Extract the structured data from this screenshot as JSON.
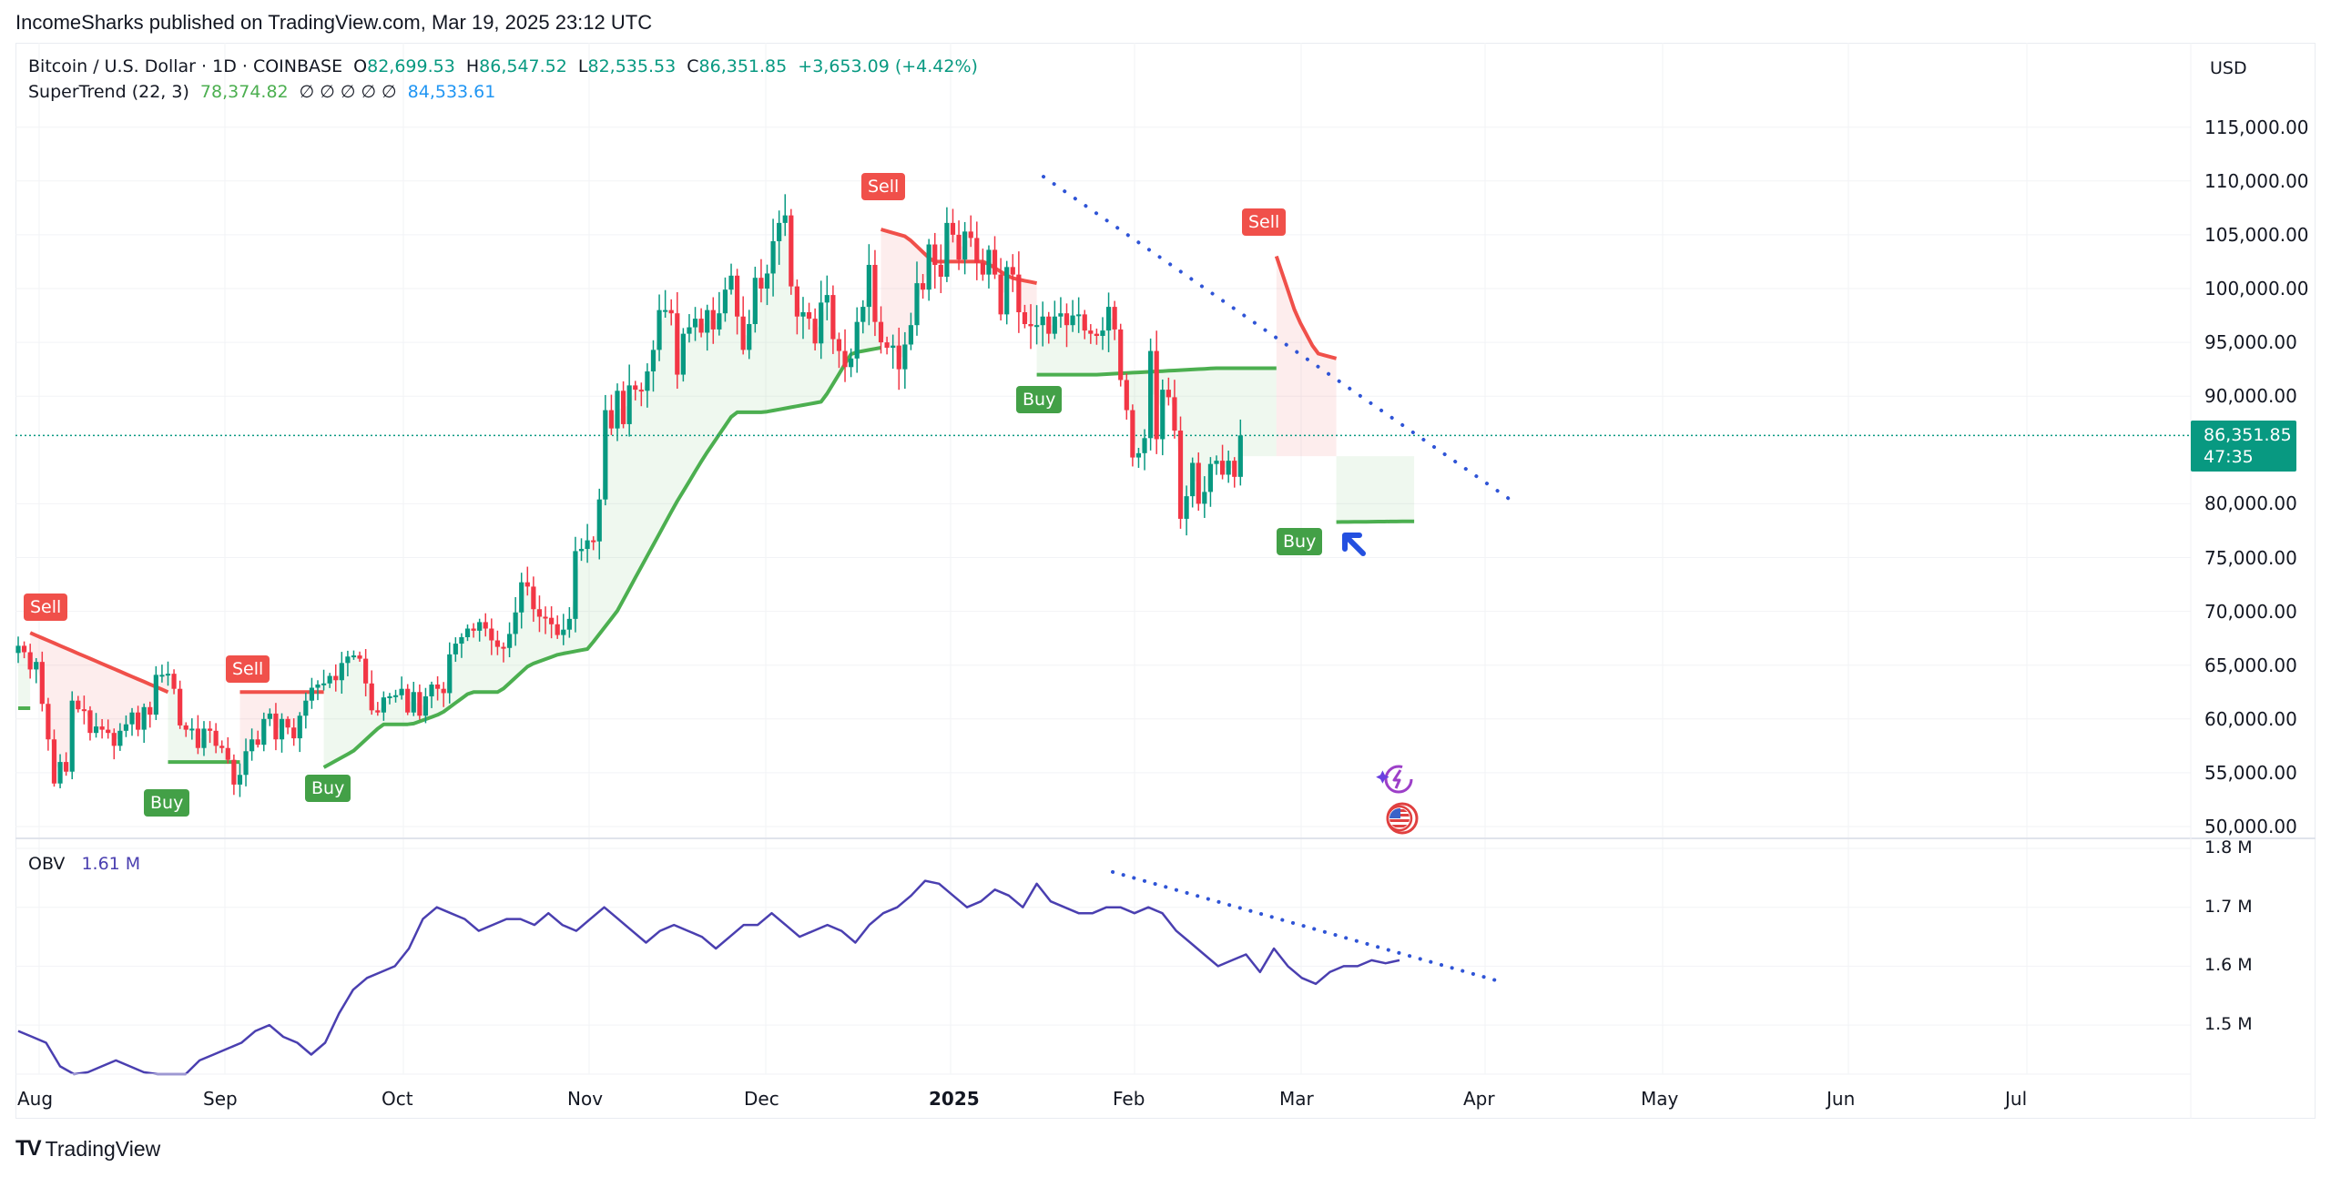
{
  "header": {
    "published": "IncomeSharks published on TradingView.com, Mar 19, 2025 23:12 UTC"
  },
  "legend": {
    "symbol": "Bitcoin / U.S. Dollar · 1D · COINBASE",
    "o_label": "O",
    "o_value": "82,699.53",
    "h_label": "H",
    "h_value": "86,547.52",
    "l_label": "L",
    "l_value": "82,535.53",
    "c_label": "C",
    "c_value": "86,351.85",
    "change": "+3,653.09 (+4.42%)",
    "supertrend_name": "SuperTrend (22, 3)",
    "supertrend_value": "78,374.82",
    "supertrend_empty": "∅ ∅ ∅ ∅ ∅",
    "supertrend_value2": "84,533.61",
    "obv_name": "OBV",
    "obv_value": "1.61 M"
  },
  "price_axis": {
    "currency": "USD",
    "labels": [
      "115,000.00",
      "110,000.00",
      "105,000.00",
      "100,000.00",
      "95,000.00",
      "90,000.00",
      "80,000.00",
      "75,000.00",
      "70,000.00",
      "65,000.00",
      "60,000.00",
      "55,000.00",
      "50,000.00"
    ],
    "current_price": "86,351.85",
    "countdown": "47:35"
  },
  "obv_axis": {
    "labels": [
      "1.8 M",
      "1.7 M",
      "1.6 M",
      "1.5 M"
    ]
  },
  "time_axis": {
    "labels": [
      "Aug",
      "Sep",
      "Oct",
      "Nov",
      "Dec",
      "2025",
      "Feb",
      "Mar",
      "Apr",
      "May",
      "Jun",
      "Jul"
    ]
  },
  "signals": {
    "sell": "Sell",
    "buy": "Buy"
  },
  "footer": {
    "brand": "TradingView",
    "logo_mark": "TV"
  },
  "colors": {
    "up": "#089981",
    "down": "#F23645",
    "supertrend_up": "#4CAF50",
    "supertrend_down": "#F0504A",
    "trendline": "#2F54D6",
    "obv": "#4A3FB0",
    "price_tag": "#089981"
  },
  "chart_data": {
    "type": "candlestick",
    "title": "Bitcoin / U.S. Dollar · 1D · COINBASE",
    "xlabel": "",
    "ylabel": "USD",
    "ylim": [
      48500,
      117500
    ],
    "x_ticks": [
      "Aug",
      "Sep",
      "Oct",
      "Nov",
      "Dec",
      "2025",
      "Feb",
      "Mar",
      "Apr",
      "May",
      "Jun",
      "Jul"
    ],
    "y_ticks": [
      50000,
      55000,
      60000,
      65000,
      70000,
      75000,
      80000,
      85000,
      90000,
      95000,
      100000,
      105000,
      110000,
      115000
    ],
    "close_series_approx": {
      "start": "2024-07-30",
      "values": [
        66800,
        66200,
        64600,
        65300,
        61400,
        58100,
        54000,
        56000,
        55100,
        61700,
        60900,
        60800,
        58700,
        59300,
        59000,
        58700,
        57500,
        58900,
        59500,
        60600,
        59000,
        61100,
        60400,
        64100,
        64100,
        64200,
        62800,
        59400,
        59000,
        59100,
        57300,
        59100,
        58900,
        57500,
        57300,
        56200,
        53900,
        54800,
        57000,
        58100,
        57600,
        60000,
        60500,
        58100,
        60000,
        59200,
        58200,
        60300,
        61700,
        62900,
        63200,
        63300,
        64000,
        63600,
        65200,
        65800,
        65900,
        65600,
        63300,
        60800,
        60600,
        62000,
        62100,
        62200,
        62800,
        60600,
        62500,
        60300,
        62100,
        63200,
        62800,
        62400,
        66000,
        67000,
        67600,
        68400,
        68200,
        69000,
        68400,
        67300,
        66700,
        66600,
        67900,
        69900,
        72700,
        72300,
        70200,
        69500,
        69400,
        68800,
        67800,
        68300,
        69300,
        75600,
        75800,
        76600,
        76500,
        80400,
        88700,
        87000,
        90500,
        87400,
        91000,
        90600,
        90500,
        92300,
        94300,
        98000,
        98000,
        97700,
        92000,
        95800,
        96400,
        97200,
        95900,
        98000,
        96200,
        97700,
        99900,
        101200,
        97400,
        94300,
        96700,
        101000,
        100000,
        101400,
        104400,
        106100,
        106800,
        100200,
        97400,
        97800,
        97200,
        94900,
        98700,
        99400,
        95300,
        94200,
        92700,
        93500,
        96900,
        98300,
        102200,
        96900,
        95000,
        94500,
        94700,
        92500,
        94800,
        96600,
        100500,
        99900,
        104100,
        102200,
        101100,
        106100,
        105000,
        102700,
        105300,
        104700,
        102400,
        101300,
        103600,
        101300,
        97600,
        102000,
        101300,
        97800,
        96700,
        96500,
        96600,
        97400,
        95800,
        97400,
        97700,
        96600,
        97500,
        97600,
        96100,
        95800,
        95600,
        96100,
        98300,
        96200,
        91500,
        88700,
        84300,
        84700,
        86100,
        94200,
        86000,
        90600,
        89900,
        86800,
        78600,
        80700,
        83800,
        80000,
        81100,
        83700,
        84000,
        82700,
        84000,
        82500,
        86352
      ]
    },
    "supertrend": {
      "params": "(22, 3)",
      "current_up": 78374.82,
      "signals": [
        {
          "type": "Sell",
          "date": "2024-08-01",
          "level": 66500
        },
        {
          "type": "Buy",
          "date": "2024-08-24",
          "level": 56000
        },
        {
          "type": "Sell",
          "date": "2024-09-04",
          "level": 62500
        },
        {
          "type": "Buy",
          "date": "2024-09-19",
          "level": 55500
        },
        {
          "type": "Sell",
          "date": "2024-12-20",
          "level": 105000
        },
        {
          "type": "Buy",
          "date": "2025-01-15",
          "level": 92500
        },
        {
          "type": "Sell",
          "date": "2025-02-25",
          "level": 102500
        },
        {
          "type": "Buy",
          "date": "2025-03-06",
          "level": 78300
        }
      ]
    },
    "trendline_price": {
      "from": {
        "date": "2025-01-19",
        "price": 110000
      },
      "to": {
        "date": "2025-04-03",
        "price": 80500
      },
      "style": "dotted"
    },
    "current_price": 86351.85,
    "obv": {
      "name": "OBV",
      "current": "1.61 M",
      "y_ticks": [
        "1.5 M",
        "1.6 M",
        "1.7 M",
        "1.8 M"
      ],
      "approx_points_M": [
        1.49,
        1.48,
        1.47,
        1.43,
        1.41,
        1.42,
        1.43,
        1.44,
        1.43,
        1.42,
        1.4,
        1.39,
        1.41,
        1.44,
        1.45,
        1.46,
        1.47,
        1.49,
        1.5,
        1.48,
        1.47,
        1.45,
        1.47,
        1.52,
        1.56,
        1.58,
        1.59,
        1.6,
        1.63,
        1.68,
        1.7,
        1.69,
        1.68,
        1.66,
        1.67,
        1.68,
        1.68,
        1.67,
        1.69,
        1.67,
        1.66,
        1.68,
        1.7,
        1.68,
        1.66,
        1.64,
        1.66,
        1.67,
        1.66,
        1.65,
        1.63,
        1.65,
        1.67,
        1.67,
        1.69,
        1.67,
        1.65,
        1.66,
        1.67,
        1.66,
        1.64,
        1.67,
        1.69,
        1.7,
        1.72,
        1.745,
        1.74,
        1.72,
        1.7,
        1.71,
        1.73,
        1.72,
        1.7,
        1.74,
        1.71,
        1.7,
        1.69,
        1.69,
        1.7,
        1.7,
        1.69,
        1.7,
        1.69,
        1.66,
        1.64,
        1.62,
        1.6,
        1.61,
        1.62,
        1.59,
        1.63,
        1.6,
        1.58,
        1.57,
        1.59,
        1.6,
        1.6,
        1.61,
        1.605,
        1.61
      ],
      "trendline": {
        "from_M": 1.76,
        "to_M": 1.57,
        "style": "dotted"
      }
    }
  }
}
